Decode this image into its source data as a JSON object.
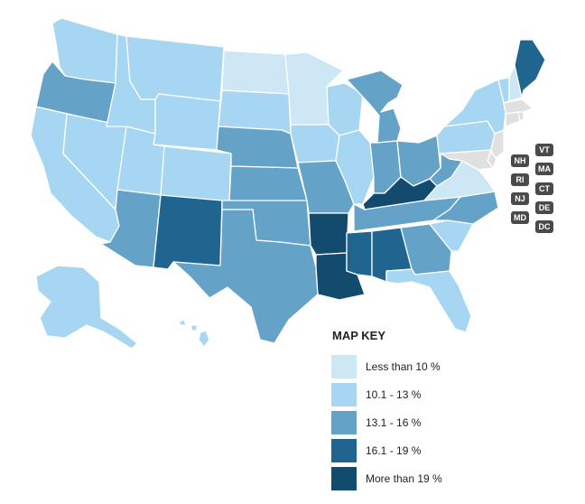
{
  "legend": {
    "title": "MAP KEY",
    "items": [
      {
        "label": "Less than 10 %",
        "color": "#cde7f5"
      },
      {
        "label": "10.1 - 13 %",
        "color": "#a6d6f1"
      },
      {
        "label": "13.1 - 16 %",
        "color": "#65a2c8"
      },
      {
        "label": "16.1 - 19 %",
        "color": "#1f6590"
      },
      {
        "label": "More than 19 %",
        "color": "#134b6f"
      }
    ]
  },
  "small_states": [
    "VT",
    "NH",
    "MA",
    "RI",
    "CT",
    "NJ",
    "DE",
    "MD",
    "DC"
  ],
  "state_classes": {
    "WA": "10.1 - 13 %",
    "OR": "13.1 - 16 %",
    "CA": "10.1 - 13 %",
    "NV": "10.1 - 13 %",
    "ID": "10.1 - 13 %",
    "MT": "10.1 - 13 %",
    "WY": "10.1 - 13 %",
    "UT": "10.1 - 13 %",
    "AZ": "13.1 - 16 %",
    "CO": "10.1 - 13 %",
    "NM": "16.1 - 19 %",
    "ND": "Less than 10 %",
    "SD": "10.1 - 13 %",
    "NE": "13.1 - 16 %",
    "KS": "13.1 - 16 %",
    "OK": "13.1 - 16 %",
    "TX": "13.1 - 16 %",
    "MN": "Less than 10 %",
    "IA": "10.1 - 13 %",
    "MO": "13.1 - 16 %",
    "AR": "More than 19 %",
    "LA": "More than 19 %",
    "WI": "10.1 - 13 %",
    "IL": "10.1 - 13 %",
    "MI": "13.1 - 16 %",
    "IN": "13.1 - 16 %",
    "OH": "13.1 - 16 %",
    "KY": "More than 19 %",
    "TN": "13.1 - 16 %",
    "MS": "16.1 - 19 %",
    "AL": "16.1 - 19 %",
    "GA": "13.1 - 16 %",
    "FL": "10.1 - 13 %",
    "SC": "10.1 - 13 %",
    "NC": "13.1 - 16 %",
    "VA": "Less than 10 %",
    "WV": "13.1 - 16 %",
    "PA": "10.1 - 13 %",
    "NY": "10.1 - 13 %",
    "ME": "16.1 - 19 %",
    "VT": "10.1 - 13 %",
    "NH": "Less than 10 %",
    "AK": "10.1 - 13 %",
    "HI": "10.1 - 13 %"
  }
}
